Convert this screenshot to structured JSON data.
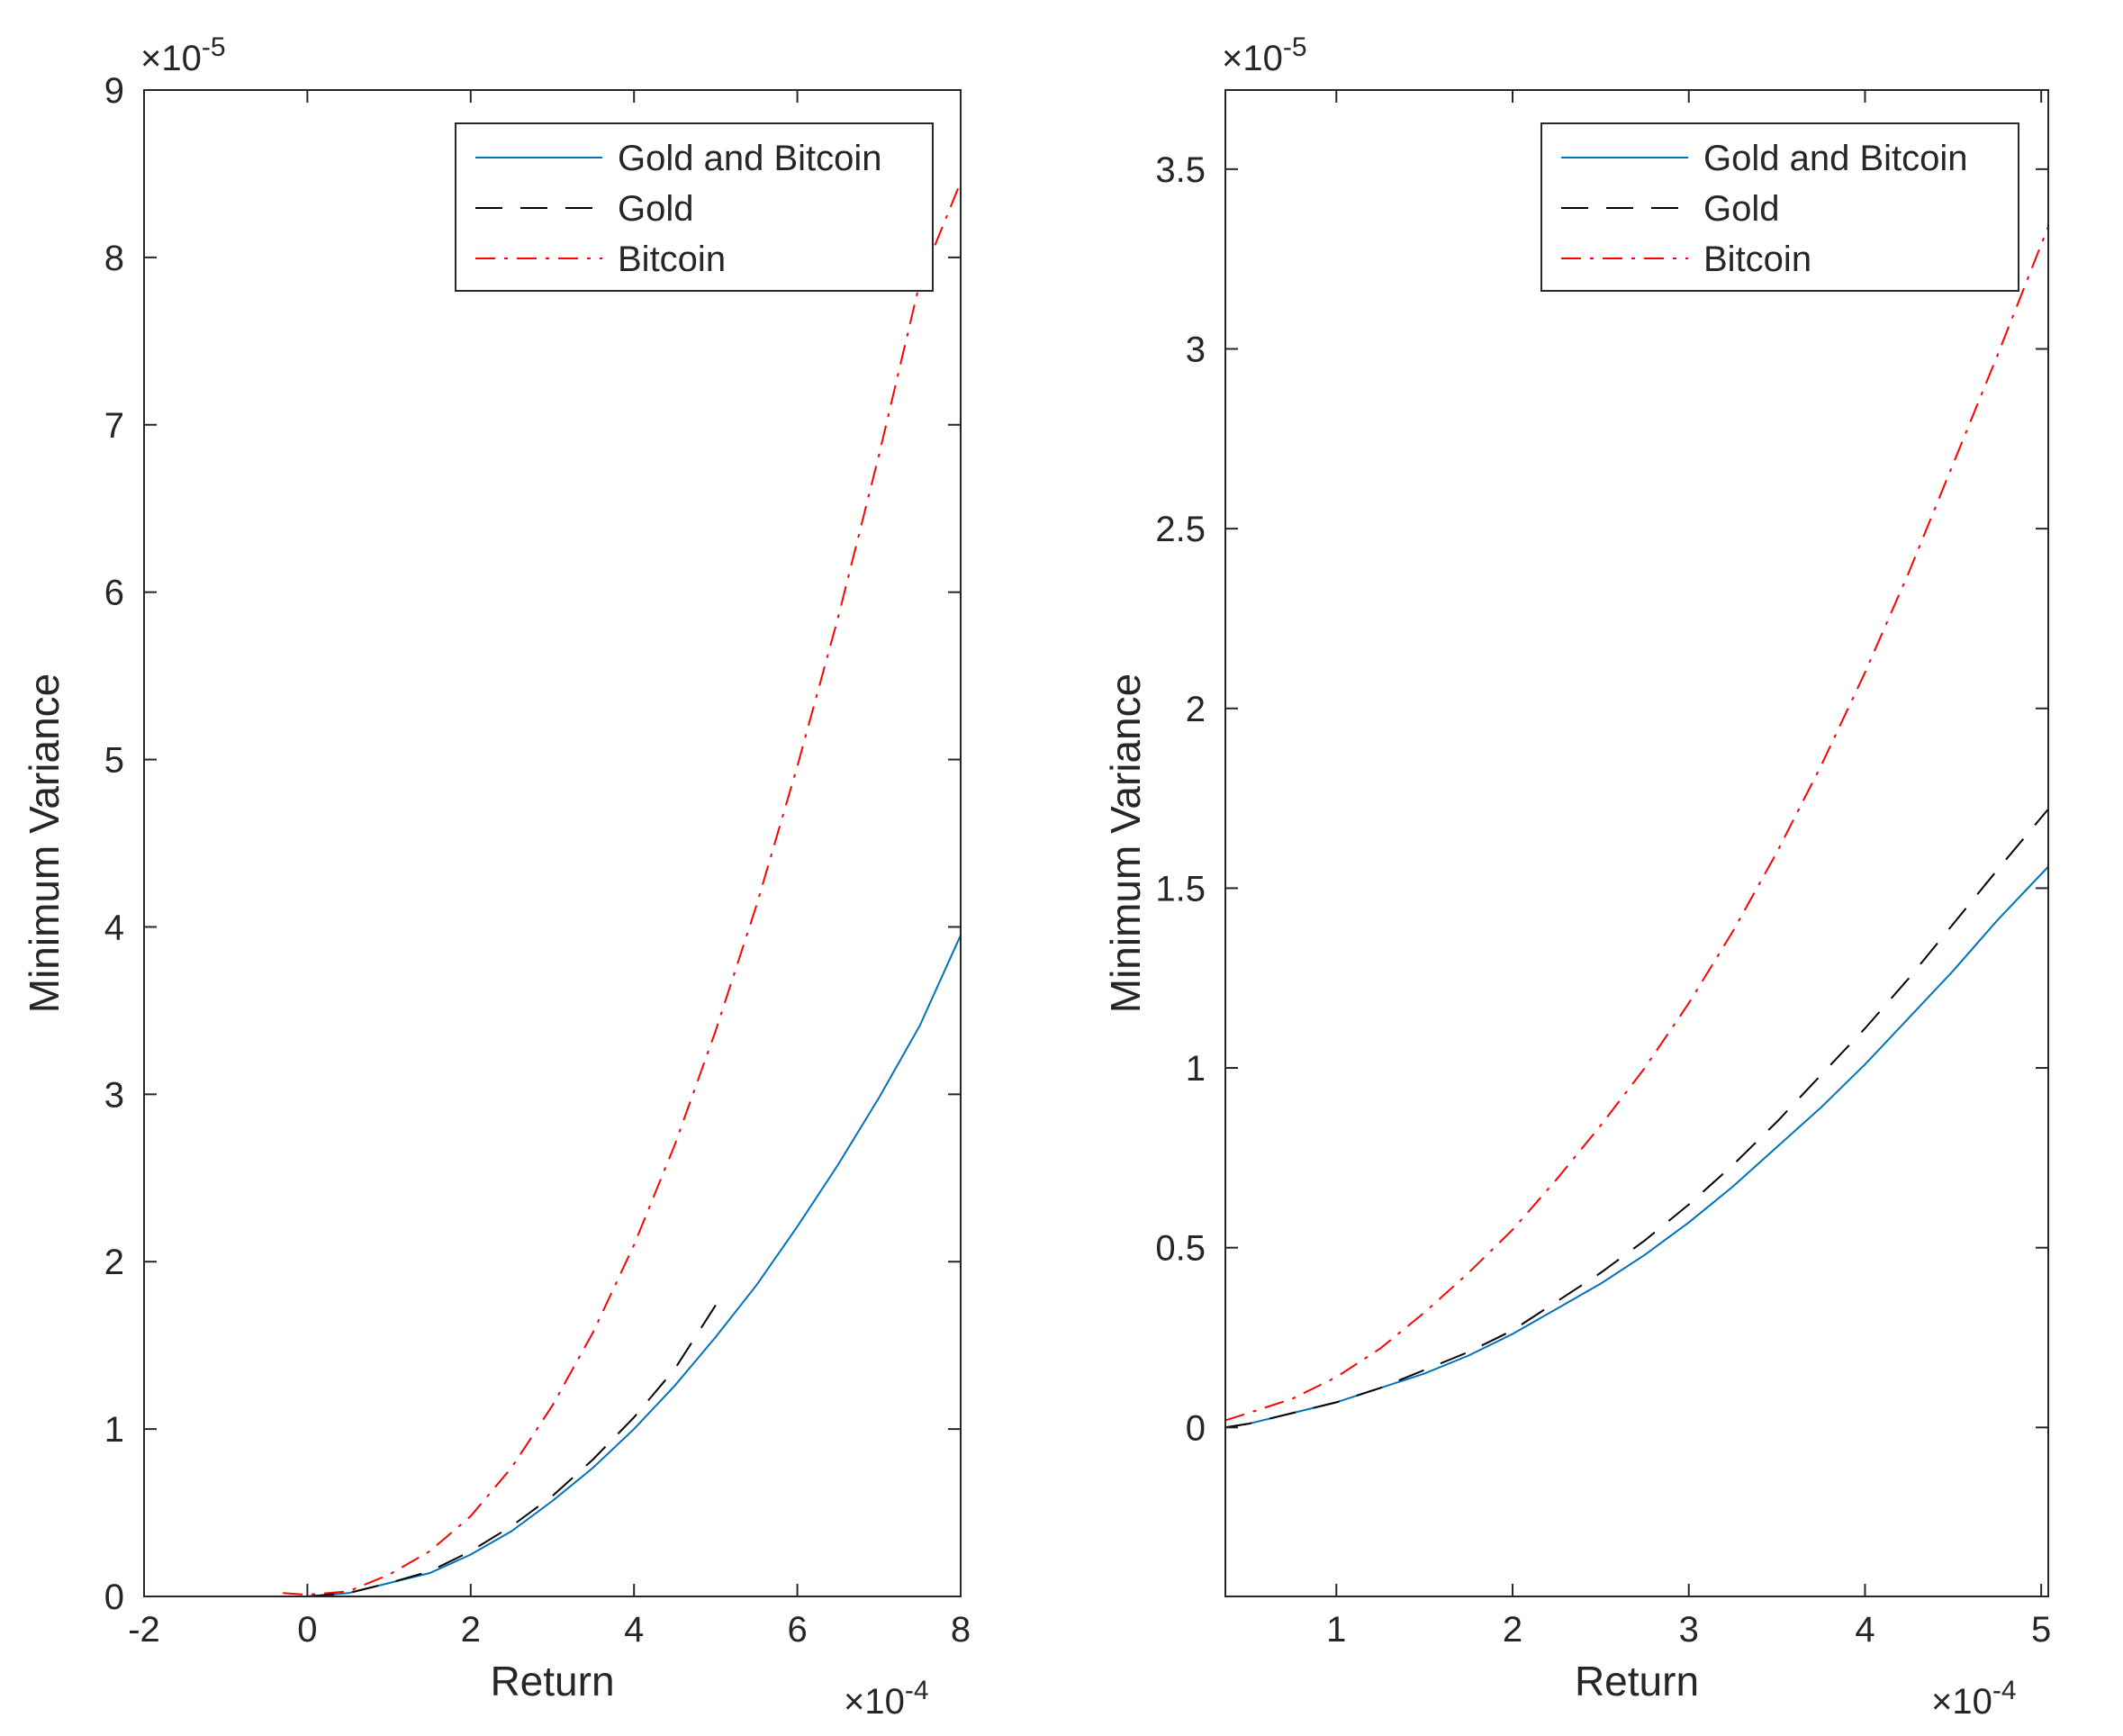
{
  "colors": {
    "combined": "#0072BD",
    "gold": "#000000",
    "bitcoin": "#FF0000",
    "axis": "#262626"
  },
  "chart_data": [
    {
      "type": "line",
      "title": "",
      "xlabel": "Return",
      "ylabel": "Minimum Variance",
      "x_multiplier": "×10",
      "x_exponent": "-4",
      "y_multiplier": "×10",
      "y_exponent": "-5",
      "xlim": [
        -2,
        8
      ],
      "ylim": [
        0,
        9
      ],
      "xticks": [
        -2,
        0,
        2,
        4,
        6,
        8
      ],
      "xtick_labels": [
        "-2",
        "0",
        "2",
        "4",
        "6",
        "8"
      ],
      "yticks": [
        0,
        1,
        2,
        3,
        4,
        5,
        6,
        7,
        8,
        9
      ],
      "ytick_labels": [
        "0",
        "1",
        "2",
        "3",
        "4",
        "5",
        "6",
        "7",
        "8",
        "9"
      ],
      "legend_position": "top-right",
      "series": [
        {
          "name": "Gold and Bitcoin",
          "style": "solid",
          "x": [
            0,
            0.5,
            1,
            1.5,
            2,
            2.5,
            3,
            3.5,
            4,
            4.5,
            5,
            5.5,
            6,
            6.5,
            7,
            7.5,
            8
          ],
          "y": [
            0.0,
            0.02,
            0.08,
            0.14,
            0.25,
            0.39,
            0.57,
            0.77,
            1.0,
            1.26,
            1.55,
            1.86,
            2.21,
            2.58,
            2.98,
            3.41,
            3.95
          ]
        },
        {
          "name": "Gold",
          "style": "dashed",
          "x": [
            0,
            0.5,
            1,
            1.5,
            2,
            2.5,
            3,
            3.5,
            4,
            4.5,
            5
          ],
          "y": [
            0.0,
            0.02,
            0.08,
            0.15,
            0.27,
            0.42,
            0.6,
            0.82,
            1.07,
            1.36,
            1.74
          ]
        },
        {
          "name": "Bitcoin",
          "style": "dashdot",
          "x": [
            -0.3,
            0,
            0.5,
            1,
            1.5,
            2,
            2.5,
            3,
            3.5,
            4,
            4.5,
            5,
            5.5,
            6,
            6.5,
            7,
            7.5,
            8
          ],
          "y": [
            0.02,
            0.01,
            0.03,
            0.13,
            0.27,
            0.48,
            0.77,
            1.14,
            1.58,
            2.1,
            2.7,
            3.38,
            4.13,
            4.96,
            5.85,
            6.82,
            7.85,
            8.45
          ]
        }
      ]
    },
    {
      "type": "line",
      "title": "",
      "xlabel": "Return",
      "ylabel": "Minimum Variance",
      "x_multiplier": "×10",
      "x_exponent": "-4",
      "y_multiplier": "×10",
      "y_exponent": "-5",
      "xlim": [
        0.37,
        5.04
      ],
      "ylim": [
        -0.47,
        3.72
      ],
      "xticks": [
        1,
        2,
        3,
        4,
        5
      ],
      "xtick_labels": [
        "1",
        "2",
        "3",
        "4",
        "5"
      ],
      "yticks": [
        0,
        0.5,
        1,
        1.5,
        2,
        2.5,
        3,
        3.5
      ],
      "ytick_labels": [
        "0",
        "0.5",
        "1",
        "1.5",
        "2",
        "2.5",
        "3",
        "3.5"
      ],
      "legend_position": "top-right",
      "series": [
        {
          "name": "Gold and Bitcoin",
          "style": "solid",
          "x": [
            0.37,
            0.5,
            0.75,
            1,
            1.25,
            1.5,
            1.75,
            2,
            2.25,
            2.5,
            2.75,
            3,
            3.25,
            3.5,
            3.75,
            4,
            4.25,
            4.5,
            4.75,
            5.04
          ],
          "y": [
            0.0,
            0.01,
            0.04,
            0.07,
            0.11,
            0.15,
            0.2,
            0.26,
            0.33,
            0.4,
            0.48,
            0.57,
            0.67,
            0.78,
            0.89,
            1.01,
            1.14,
            1.27,
            1.41,
            1.56
          ]
        },
        {
          "name": "Gold",
          "style": "dashed",
          "x": [
            0.37,
            0.5,
            0.75,
            1,
            1.25,
            1.5,
            1.75,
            2,
            2.25,
            2.5,
            2.75,
            3,
            3.25,
            3.5,
            3.75,
            4,
            4.25,
            4.5,
            4.75,
            5.04
          ],
          "y": [
            0.0,
            0.01,
            0.04,
            0.07,
            0.11,
            0.16,
            0.21,
            0.27,
            0.35,
            0.43,
            0.52,
            0.62,
            0.73,
            0.85,
            0.98,
            1.11,
            1.25,
            1.4,
            1.55,
            1.72
          ]
        },
        {
          "name": "Bitcoin",
          "style": "dashdot",
          "x": [
            0.37,
            0.5,
            0.75,
            1,
            1.25,
            1.5,
            1.75,
            2,
            2.25,
            2.5,
            2.75,
            3,
            3.25,
            3.5,
            3.75,
            4,
            4.25,
            4.5,
            4.75,
            5.04
          ],
          "y": [
            0.02,
            0.04,
            0.08,
            0.14,
            0.22,
            0.32,
            0.43,
            0.55,
            0.69,
            0.84,
            1.0,
            1.18,
            1.38,
            1.6,
            1.84,
            2.1,
            2.38,
            2.68,
            2.98,
            3.34
          ]
        }
      ]
    }
  ]
}
